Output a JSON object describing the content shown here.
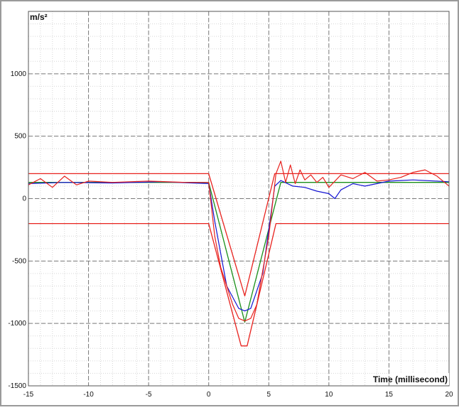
{
  "chart_data": {
    "type": "line",
    "ylabel": "m/s²",
    "xlabel": "Time (millisecond)",
    "xlim": [
      -15,
      20
    ],
    "ylim": [
      -1500,
      1500
    ],
    "x_ticks": [
      -15,
      -10,
      -5,
      0,
      5,
      10,
      15,
      20
    ],
    "y_ticks": [
      1000,
      500,
      0,
      -500,
      -1000,
      -1500
    ],
    "grid": "on (dashed major, dotted minor)",
    "legend": "none",
    "colors": {
      "red": "#e8221e",
      "green": "#1a8f1a",
      "blue": "#1414d2",
      "major_grid": "#7a7a7a",
      "minor_grid": "#d6d6d6",
      "frame_outer": "#9a9a9a"
    },
    "series": [
      {
        "color": "#e8221e",
        "values_x": [
          -15,
          0,
          3,
          5.5,
          20
        ],
        "values_y": [
          200,
          200,
          -780,
          200,
          200
        ]
      },
      {
        "color": "#e8221e",
        "values_x": [
          -15,
          0,
          2.7,
          3.2,
          5.6,
          20
        ],
        "values_y": [
          -200,
          -200,
          -1180,
          -1180,
          -200,
          -200
        ]
      },
      {
        "color": "#1a8f1a",
        "values_x": [
          -15,
          0,
          3,
          6,
          20
        ],
        "values_y": [
          130,
          130,
          -990,
          130,
          130
        ]
      },
      {
        "color": "#1414d2",
        "values_x": [
          -15,
          -12,
          -8,
          -4,
          0,
          0.5,
          1.5,
          2.5,
          3,
          3.5,
          4.5,
          5.5,
          6,
          7,
          8,
          9,
          10,
          10.5,
          11,
          12,
          13,
          15,
          17,
          20
        ],
        "values_y": [
          120,
          130,
          125,
          135,
          120,
          -180,
          -700,
          -880,
          -900,
          -880,
          -600,
          100,
          145,
          100,
          90,
          60,
          40,
          0,
          70,
          120,
          100,
          140,
          150,
          135
        ]
      },
      {
        "color": "#e8221e",
        "values_x": [
          -15,
          -14,
          -13,
          -12,
          -11,
          -10,
          -8,
          -5,
          -2,
          0,
          0.5,
          1,
          2,
          2.5,
          3,
          3.5,
          4,
          5,
          5.6,
          6,
          6.4,
          6.8,
          7.2,
          7.6,
          8,
          8.5,
          9,
          9.5,
          10,
          11,
          12,
          13,
          14,
          15,
          16,
          17,
          18,
          19,
          20
        ],
        "values_y": [
          110,
          160,
          90,
          180,
          110,
          140,
          130,
          140,
          130,
          130,
          -300,
          -550,
          -850,
          -960,
          -980,
          -960,
          -850,
          -300,
          200,
          300,
          130,
          270,
          120,
          230,
          150,
          190,
          130,
          170,
          90,
          190,
          160,
          210,
          140,
          150,
          170,
          210,
          230,
          180,
          100
        ]
      }
    ]
  }
}
